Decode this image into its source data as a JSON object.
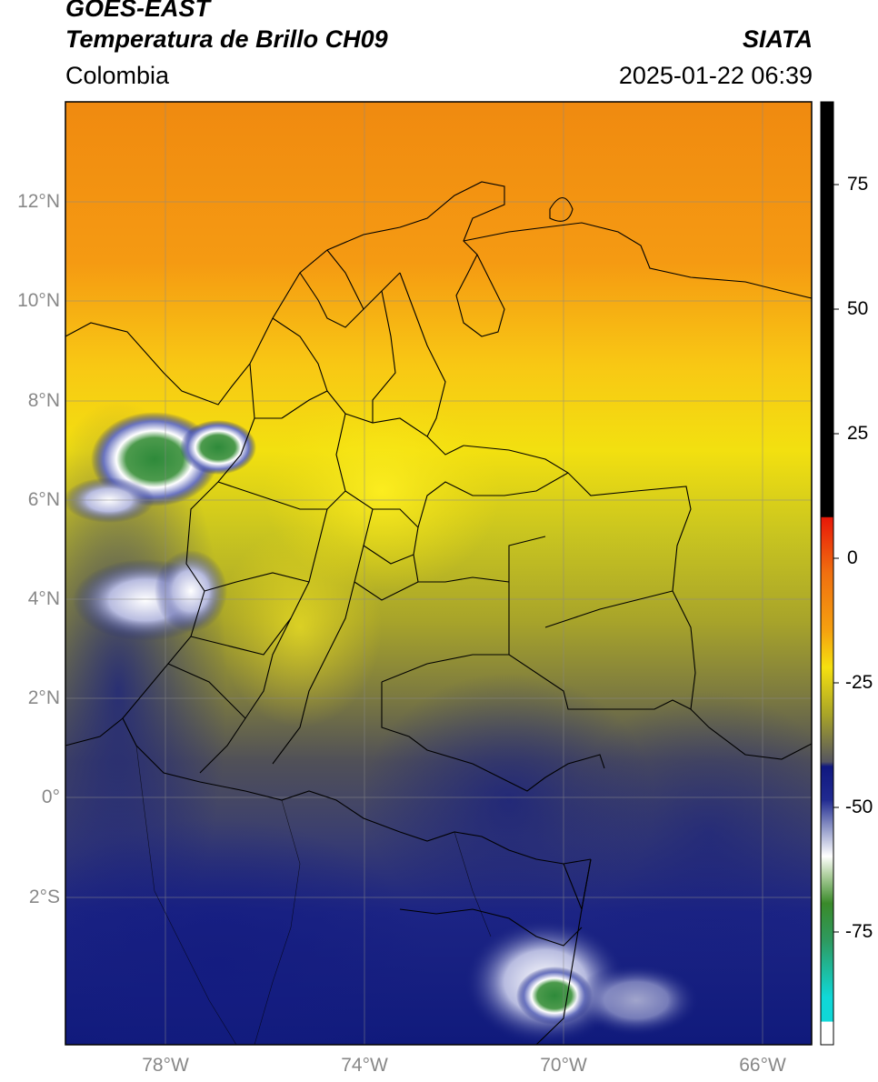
{
  "header": {
    "satellite": "GOES-EAST",
    "product": "Temperatura de Brillo CH09",
    "region": "Colombia",
    "source": "SIATA",
    "timestamp": "2025-01-22 06:39"
  },
  "map": {
    "lat_ticks": [
      "12°N",
      "10°N",
      "8°N",
      "6°N",
      "4°N",
      "2°N",
      "0°",
      "2°S"
    ],
    "lon_ticks": [
      "78°W",
      "74°W",
      "70°W",
      "66°W"
    ],
    "extent": {
      "lon": [
        -80,
        -65
      ],
      "lat": [
        -5,
        14
      ]
    },
    "gridlines": true
  },
  "colorbar": {
    "ticks": [
      "75",
      "50",
      "25",
      "0",
      "-25",
      "-50",
      "-75"
    ],
    "range": [
      -95,
      90
    ],
    "colors": {
      "top": "#000000",
      "red": "#e82010",
      "orange": "#f59010",
      "yellow": "#f5e810",
      "olive": "#a8a428",
      "gray": "#555560",
      "navy": "#101880",
      "white": "#ffffff",
      "green": "#2e8a2e",
      "cyan": "#10d8d8"
    }
  }
}
